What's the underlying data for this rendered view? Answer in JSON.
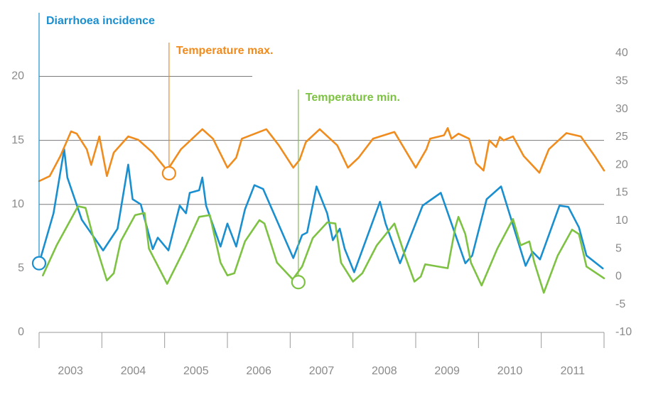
{
  "chart_data": {
    "type": "line",
    "xlim": [
      2003,
      2012
    ],
    "xtick_marks": [
      2003,
      2004,
      2005,
      2006,
      2007,
      2008,
      2009,
      2010,
      2011,
      2012
    ],
    "xticks": [
      {
        "value": 2003.5,
        "label": "2003"
      },
      {
        "value": 2004.5,
        "label": "2004"
      },
      {
        "value": 2005.5,
        "label": "2005"
      },
      {
        "value": 2006.5,
        "label": "2006"
      },
      {
        "value": 2007.5,
        "label": "2007"
      },
      {
        "value": 2008.5,
        "label": "2008"
      },
      {
        "value": 2009.5,
        "label": "2009"
      },
      {
        "value": 2010.5,
        "label": "2010"
      },
      {
        "value": 2011.5,
        "label": "2011"
      }
    ],
    "ylim": [
      0,
      21.8
    ],
    "yticks": [
      0,
      5,
      10,
      15,
      20
    ],
    "ygrid": [
      10,
      15,
      20
    ],
    "y2lim": [
      -10,
      40
    ],
    "y2ticks": [
      -10,
      -5,
      0,
      5,
      10,
      15,
      20,
      25,
      30,
      35,
      40
    ],
    "series": [
      {
        "name": "Diarrhoea incidence",
        "color": "#1a8fd0",
        "axis": "y",
        "marker": {
          "x": 2003.0,
          "y": 5.4
        },
        "x": [
          2003.0,
          2003.23,
          2003.4,
          2003.45,
          2003.68,
          2004.02,
          2004.25,
          2004.42,
          2004.49,
          2004.62,
          2004.81,
          2004.89,
          2005.06,
          2005.24,
          2005.34,
          2005.4,
          2005.55,
          2005.6,
          2005.66,
          2005.89,
          2006.0,
          2006.14,
          2006.28,
          2006.43,
          2006.57,
          2007.05,
          2007.19,
          2007.27,
          2007.42,
          2007.59,
          2007.68,
          2007.79,
          2007.87,
          2008.02,
          2008.43,
          2008.52,
          2008.75,
          2009.11,
          2009.4,
          2009.79,
          2009.9,
          2010.13,
          2010.36,
          2010.75,
          2010.86,
          2010.98,
          2011.29,
          2011.43,
          2011.6,
          2011.72,
          2011.98
        ],
        "values": [
          5.4,
          9.3,
          14.3,
          12.1,
          8.8,
          6.4,
          8.1,
          13.1,
          10.4,
          10.0,
          6.5,
          7.4,
          6.4,
          9.9,
          9.3,
          10.9,
          11.1,
          12.1,
          9.9,
          6.7,
          8.5,
          6.7,
          9.6,
          11.5,
          11.2,
          5.8,
          7.6,
          7.8,
          11.4,
          9.3,
          7.2,
          8.1,
          6.5,
          4.7,
          10.2,
          8.5,
          5.4,
          9.9,
          10.9,
          5.4,
          6.0,
          10.4,
          11.4,
          5.2,
          6.3,
          5.7,
          9.9,
          9.8,
          8.2,
          6.0,
          5.0
        ]
      },
      {
        "name": "Temperature max.",
        "color": "#f08c1e",
        "axis": "y2",
        "marker": {
          "x": 2005.07,
          "y": 18.5
        },
        "x": [
          2003.0,
          2003.17,
          2003.34,
          2003.51,
          2003.6,
          2003.76,
          2003.83,
          2003.96,
          2004.08,
          2004.19,
          2004.42,
          2004.58,
          2004.81,
          2005.04,
          2005.26,
          2005.6,
          2005.77,
          2006.0,
          2006.14,
          2006.23,
          2006.62,
          2006.82,
          2007.05,
          2007.15,
          2007.25,
          2007.47,
          2007.75,
          2007.92,
          2008.09,
          2008.32,
          2008.66,
          2009.0,
          2009.17,
          2009.23,
          2009.45,
          2009.51,
          2009.57,
          2009.68,
          2009.85,
          2009.96,
          2010.08,
          2010.17,
          2010.28,
          2010.34,
          2010.4,
          2010.55,
          2010.72,
          2010.97,
          2011.12,
          2011.4,
          2011.63,
          2011.85,
          2012.0
        ],
        "values": [
          17.1,
          18.0,
          21.6,
          26.0,
          25.6,
          22.8,
          20.0,
          25.1,
          18.0,
          22.2,
          25.1,
          24.5,
          22.2,
          19.0,
          22.8,
          26.4,
          24.7,
          19.5,
          21.3,
          24.7,
          26.4,
          23.5,
          19.5,
          20.9,
          24.1,
          26.4,
          23.5,
          19.5,
          21.3,
          24.7,
          25.9,
          19.5,
          22.8,
          24.7,
          25.3,
          26.6,
          24.7,
          25.6,
          24.7,
          20.3,
          19.0,
          24.4,
          23.2,
          25.0,
          24.4,
          25.1,
          21.6,
          18.6,
          22.8,
          25.7,
          25.1,
          21.6,
          19.0
        ]
      },
      {
        "name": "Temperature min.",
        "color": "#7dc242",
        "axis": "y2",
        "marker": {
          "x": 2007.13,
          "y": -1.0
        },
        "x": [
          2003.06,
          2003.28,
          2003.62,
          2003.74,
          2003.85,
          2004.08,
          2004.19,
          2004.3,
          2004.53,
          2004.68,
          2004.75,
          2005.04,
          2005.32,
          2005.55,
          2005.72,
          2005.89,
          2006.0,
          2006.11,
          2006.28,
          2006.51,
          2006.59,
          2006.79,
          2007.04,
          2007.19,
          2007.36,
          2007.59,
          2007.72,
          2007.81,
          2008.0,
          2008.15,
          2008.38,
          2008.66,
          2008.83,
          2008.98,
          2009.08,
          2009.15,
          2009.51,
          2009.63,
          2009.68,
          2009.79,
          2009.88,
          2010.05,
          2010.3,
          2010.55,
          2010.67,
          2010.81,
          2010.89,
          2011.04,
          2011.26,
          2011.49,
          2011.6,
          2011.72,
          2012.0
        ],
        "values": [
          0.2,
          5.6,
          12.6,
          12.3,
          7.6,
          -0.7,
          0.6,
          6.3,
          11.0,
          11.4,
          5.0,
          -1.3,
          5.0,
          10.7,
          11.0,
          2.5,
          0.2,
          0.6,
          6.3,
          10.1,
          9.5,
          2.5,
          -0.5,
          1.8,
          6.9,
          9.7,
          9.5,
          2.5,
          -0.9,
          0.6,
          5.6,
          9.5,
          3.7,
          -0.9,
          0.0,
          2.2,
          1.5,
          8.8,
          10.7,
          7.6,
          2.5,
          -1.6,
          5.0,
          10.3,
          5.6,
          6.3,
          2.5,
          -2.9,
          3.7,
          8.4,
          7.6,
          1.8,
          -0.3
        ]
      }
    ]
  }
}
